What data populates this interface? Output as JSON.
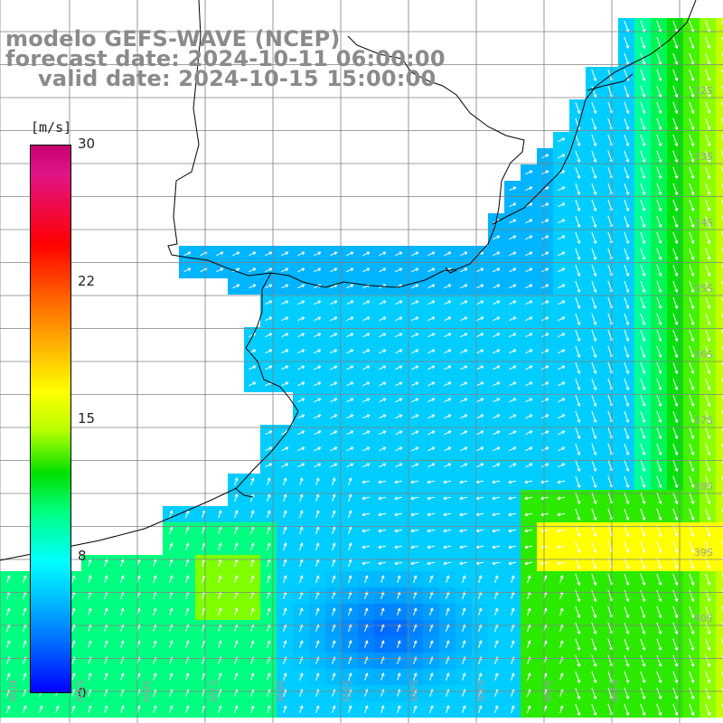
{
  "title": {
    "line1": "modelo GEFS-WAVE (NCEP)",
    "line2": "forecast date: 2024-10-11 06:00:00",
    "line3": "valid date: 2024-10-15 15:00:00"
  },
  "colorbar": {
    "unit_label": "[m/s]",
    "ticks": [
      "30",
      "22",
      "15",
      "8",
      "0"
    ],
    "tick_values": [
      30,
      22,
      15,
      8,
      0
    ],
    "colors": [
      "#0000ff",
      "#00b4ff",
      "#00ffff",
      "#00e000",
      "#ffff00",
      "#ff0000",
      "#c6006e"
    ]
  },
  "axes": {
    "lat_labels": [
      "32S",
      "33S",
      "34S",
      "35S",
      "36S",
      "37S",
      "38S",
      "39S",
      "40S"
    ],
    "lon_labels": [
      "60W",
      "59W",
      "58W",
      "57W",
      "56W",
      "55W",
      "54W",
      "53W",
      "52W",
      "51W"
    ]
  },
  "map_colors": {
    "land": "#ffffff",
    "grid": "#808080",
    "coast": "#000000",
    "arrow": "#ffffff"
  }
}
